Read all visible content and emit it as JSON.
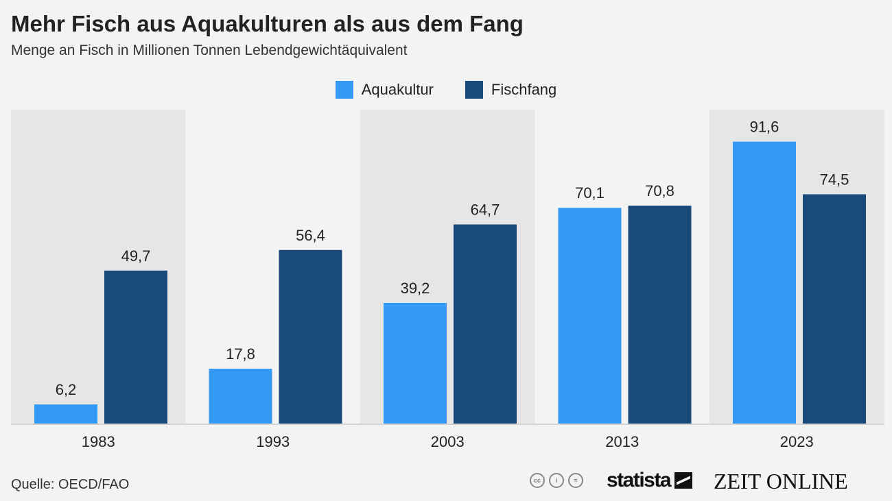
{
  "title": "Mehr Fisch aus Aquakulturen als aus dem Fang",
  "subtitle": "Menge an Fisch in Millionen Tonnen Lebendgewichtäquivalent",
  "source": "Quelle: OECD/FAO",
  "logos": {
    "statista": "statista",
    "zeit": "ZEIT ONLINE",
    "cc": [
      "cc-icon",
      "by-icon",
      "nd-icon"
    ]
  },
  "chart_data": {
    "type": "bar",
    "title": "Mehr Fisch aus Aquakulturen als aus dem Fang",
    "ylabel": "Millionen Tonnen Lebendgewichtäquivalent",
    "categories": [
      "1983",
      "1993",
      "2003",
      "2013",
      "2023"
    ],
    "series": [
      {
        "name": "Aquakultur",
        "color": "#3399f3",
        "values": [
          6.2,
          17.8,
          39.2,
          70.1,
          91.6
        ],
        "labels": [
          "6,2",
          "17,8",
          "39,2",
          "70,1",
          "91,6"
        ]
      },
      {
        "name": "Fischfang",
        "color": "#1a4a7a",
        "values": [
          49.7,
          56.4,
          64.7,
          70.8,
          74.5
        ],
        "labels": [
          "49,7",
          "56,4",
          "64,7",
          "70,8",
          "74,5"
        ]
      }
    ],
    "ylim": [
      0,
      102
    ],
    "legend": "top-center",
    "grid": false
  }
}
